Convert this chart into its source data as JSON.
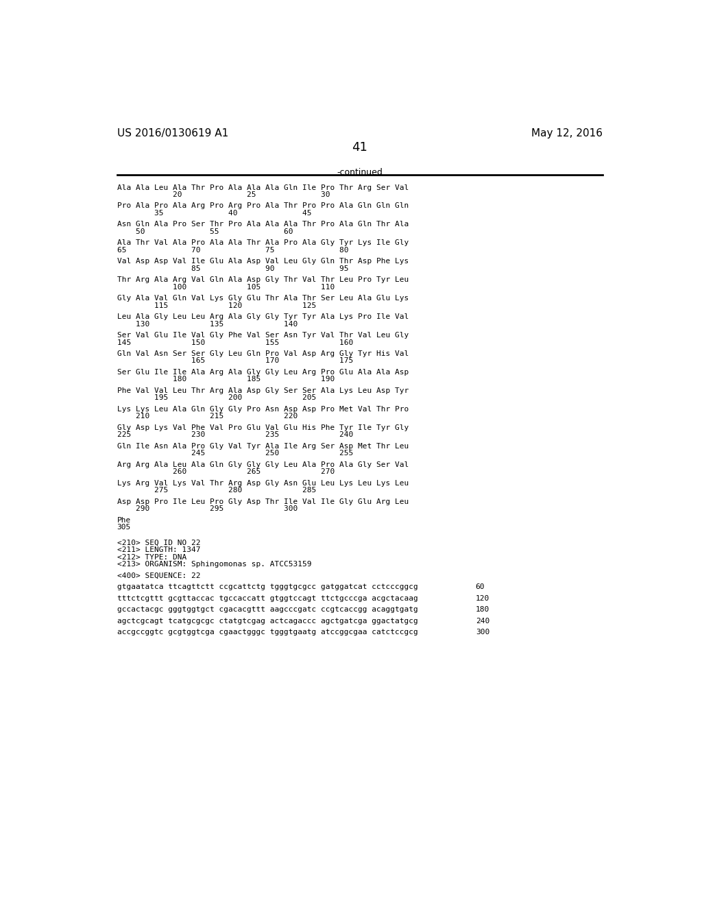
{
  "header_left": "US 2016/0130619 A1",
  "header_right": "May 12, 2016",
  "page_number": "41",
  "continued_label": "-continued",
  "background_color": "#ffffff",
  "text_color": "#000000",
  "seq_font_size": 8.0,
  "header_font_size": 11,
  "page_num_font_size": 13,
  "sequence_lines": [
    "Ala Ala Leu Ala Thr Pro Ala Ala Ala Gln Ile Pro Thr Arg Ser Val",
    "            20              25              30",
    "",
    "Pro Ala Pro Ala Arg Pro Arg Pro Ala Thr Pro Pro Ala Gln Gln Gln",
    "        35              40              45",
    "",
    "Asn Gln Ala Pro Ser Thr Pro Ala Ala Ala Thr Pro Ala Gln Thr Ala",
    "    50              55              60",
    "",
    "Ala Thr Val Ala Pro Ala Ala Thr Ala Pro Ala Gly Tyr Lys Ile Gly",
    "65              70              75              80",
    "",
    "Val Asp Asp Val Ile Glu Ala Asp Val Leu Gly Gln Thr Asp Phe Lys",
    "                85              90              95",
    "",
    "Thr Arg Ala Arg Val Gln Ala Asp Gly Thr Val Thr Leu Pro Tyr Leu",
    "            100             105             110",
    "",
    "Gly Ala Val Gln Val Lys Gly Glu Thr Ala Thr Ser Leu Ala Glu Lys",
    "        115             120             125",
    "",
    "Leu Ala Gly Leu Leu Arg Ala Gly Gly Tyr Tyr Ala Lys Pro Ile Val",
    "    130             135             140",
    "",
    "Ser Val Glu Ile Val Gly Phe Val Ser Asn Tyr Val Thr Val Leu Gly",
    "145             150             155             160",
    "",
    "Gln Val Asn Ser Ser Gly Leu Gln Pro Val Asp Arg Gly Tyr His Val",
    "                165             170             175",
    "",
    "Ser Glu Ile Ile Ala Arg Ala Gly Gly Leu Arg Pro Glu Ala Ala Asp",
    "            180             185             190",
    "",
    "Phe Val Val Leu Thr Arg Ala Asp Gly Ser Ser Ala Lys Leu Asp Tyr",
    "        195             200             205",
    "",
    "Lys Lys Leu Ala Gln Gly Gly Pro Asn Asp Asp Pro Met Val Thr Pro",
    "    210             215             220",
    "",
    "Gly Asp Lys Val Phe Val Pro Glu Val Glu His Phe Tyr Ile Tyr Gly",
    "225             230             235             240",
    "",
    "Gln Ile Asn Ala Pro Gly Val Tyr Ala Ile Arg Ser Asp Met Thr Leu",
    "                245             250             255",
    "",
    "Arg Arg Ala Leu Ala Gln Gly Gly Gly Leu Ala Pro Ala Gly Ser Val",
    "            260             265             270",
    "",
    "Lys Arg Val Lys Val Thr Arg Asp Gly Asn Glu Leu Lys Leu Lys Leu",
    "        275             280             285",
    "",
    "Asp Asp Pro Ile Leu Pro Gly Asp Thr Ile Val Ile Gly Glu Arg Leu",
    "    290             295             300",
    "",
    "Phe",
    "305"
  ],
  "metadata_lines": [
    "<210> SEQ ID NO 22",
    "<211> LENGTH: 1347",
    "<212> TYPE: DNA",
    "<213> ORGANISM: Sphingomonas sp. ATCC53159",
    "",
    "<400> SEQUENCE: 22",
    "",
    "gtgaatatca ttcagttctt ccgcattctg tgggtgcgcc gatggatcat cctcccggcg",
    "60",
    "",
    "tttctcgttt gcgttaccac tgccaccatt gtggtccagt ttctgcccga acgctacaag",
    "120",
    "",
    "gccactacgc gggtggtgct cgacacgttt aagcccgatc ccgtcaccgg acaggtgatg",
    "180",
    "",
    "agctcgcagt tcatgcgcgc ctatgtcgag actcagaccc agctgatcga ggactatgcg",
    "240",
    "",
    "accgccggtc gcgtggtcga cgaactgggc tgggtgaatg atccggcgaa catctccgcg",
    "300"
  ],
  "dna_numbers": [
    "60",
    "120",
    "180",
    "240",
    "300"
  ]
}
